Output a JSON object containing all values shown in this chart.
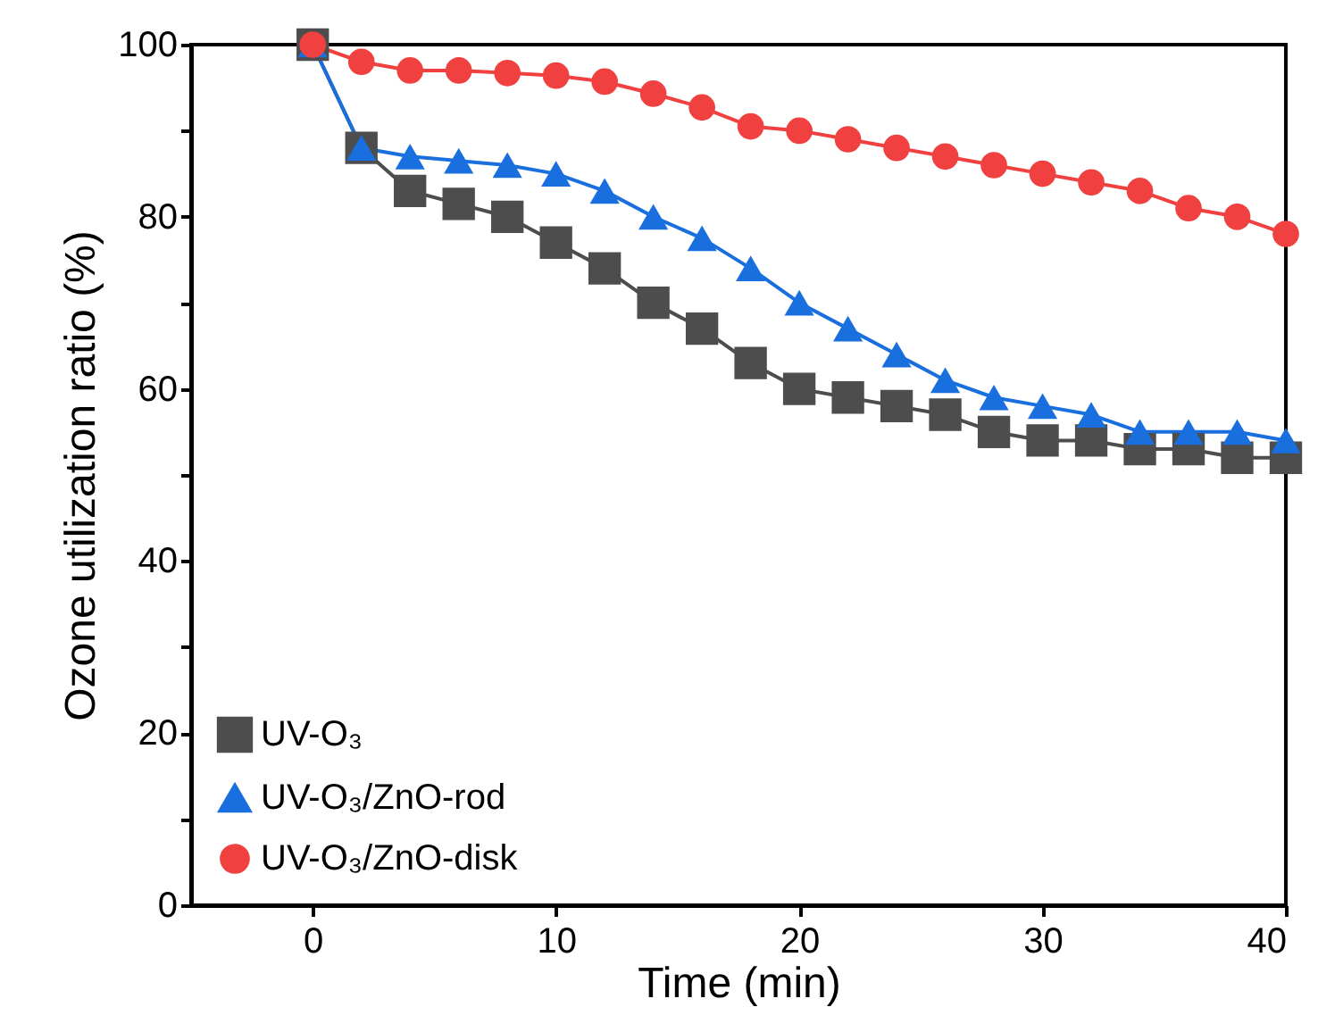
{
  "chart_data": {
    "type": "line",
    "xlabel": "Time (min)",
    "ylabel": "Ozone utilization ratio (%)",
    "x": [
      0,
      2,
      4,
      6,
      8,
      10,
      12,
      14,
      16,
      18,
      20,
      22,
      24,
      26,
      28,
      30,
      32,
      34,
      36,
      38,
      40
    ],
    "series": [
      {
        "name": "UV-O₃",
        "color": "#4d4d4d",
        "marker": "square",
        "values": [
          100,
          88,
          83,
          81.5,
          80,
          77,
          74,
          70,
          67,
          63,
          60,
          59,
          58,
          57,
          55,
          54,
          54,
          53,
          53,
          52,
          52
        ]
      },
      {
        "name": "UV-O₃/ZnO-rod",
        "color": "#1a6fdf",
        "marker": "triangle",
        "values": [
          100,
          88,
          87,
          86.5,
          86,
          85,
          83,
          80,
          77.5,
          74,
          70,
          67,
          64,
          61,
          59,
          58,
          57,
          55,
          55,
          55,
          54
        ]
      },
      {
        "name": "UV-O₃/ZnO-disk",
        "color": "#f14040",
        "marker": "circle",
        "values": [
          100,
          98,
          97,
          97,
          96.7,
          96.4,
          95.7,
          94.3,
          92.7,
          90.5,
          90,
          89,
          88,
          87,
          86,
          85,
          84,
          83,
          81,
          80,
          78
        ]
      }
    ],
    "xlim": [
      -5,
      40
    ],
    "xticks": [
      0,
      10,
      20,
      30,
      40
    ],
    "ylim": [
      0,
      100
    ],
    "yticks": [
      0,
      {
        "value": 10,
        "label": null
      },
      20,
      {
        "value": 30,
        "label": null
      },
      40,
      {
        "value": 50,
        "label": null
      },
      60,
      {
        "value": 70,
        "label": null
      },
      80,
      {
        "value": 90,
        "label": null
      },
      100
    ],
    "grid": false,
    "legend": "bottom left",
    "line_style": "solid"
  }
}
